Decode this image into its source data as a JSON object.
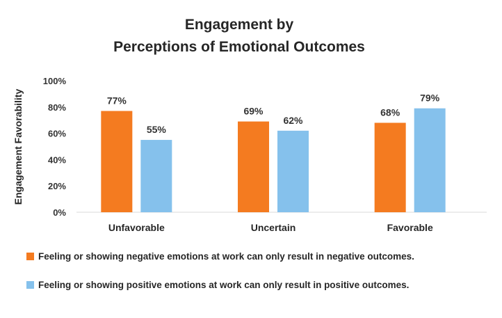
{
  "chart_data": {
    "type": "bar",
    "title_line1": "Engagement by",
    "title_line2": "Perceptions of Emotional Outcomes",
    "ylabel": "Engagement Favorability",
    "xlabel": "",
    "ylim": [
      0,
      100
    ],
    "yticks": [
      "0%",
      "20%",
      "40%",
      "60%",
      "80%",
      "100%"
    ],
    "categories": [
      "Unfavorable",
      "Uncertain",
      "Favorable"
    ],
    "series": [
      {
        "name": "Feeling or showing negative emotions at work can only result in negative outcomes.",
        "color": "#F47B20",
        "values": [
          77,
          69,
          68
        ],
        "labels": [
          "77%",
          "69%",
          "68%"
        ]
      },
      {
        "name": "Feeling or showing positive emotions at work can only result in positive outcomes.",
        "color": "#85C1EC",
        "values": [
          55,
          62,
          79
        ],
        "labels": [
          "55%",
          "62%",
          "79%"
        ]
      }
    ],
    "grid": false,
    "legend_position": "bottom"
  }
}
